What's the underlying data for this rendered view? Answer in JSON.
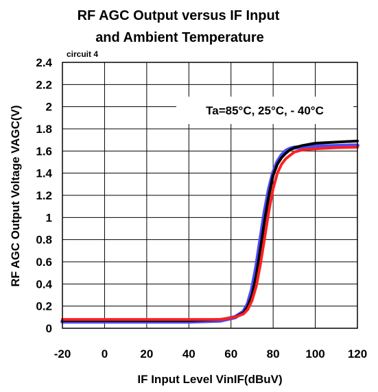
{
  "chart_data": {
    "type": "line",
    "title_line1": "RF AGC Output versus IF Input",
    "title_line2": "and Ambient Temperature",
    "subtitle": "circuit 4",
    "xlabel": "IF Input Level VinIF(dBuV)",
    "ylabel": "RF AGC Output Voltage VAGC(V)",
    "annotation": "Ta=85°C, 25°C, - 40°C",
    "xlim": [
      -20,
      120
    ],
    "ylim": [
      0,
      2.4
    ],
    "xticks": [
      -20,
      0,
      20,
      40,
      60,
      80,
      100,
      120
    ],
    "xtick_labels": [
      "-20",
      "0",
      "20",
      "40",
      "60",
      "80",
      "100",
      "120"
    ],
    "yticks": [
      0,
      0.2,
      0.4,
      0.6,
      0.8,
      1,
      1.2,
      1.4,
      1.6,
      1.8,
      2,
      2.2,
      2.4
    ],
    "ytick_labels": [
      "0",
      "0.2",
      "0.4",
      "0.6",
      "0.8",
      "1",
      "1.2",
      "1.4",
      "1.6",
      "1.8",
      "2",
      "2.2",
      "2.4"
    ],
    "grid": true,
    "series": [
      {
        "color": "#4b4bff",
        "x": [
          -20,
          0,
          20,
          40,
          55,
          62,
          66,
          68,
          70,
          72,
          74,
          76,
          78,
          80,
          82,
          84,
          86,
          88,
          90,
          94,
          100,
          110,
          120
        ],
        "y": [
          0.06,
          0.06,
          0.06,
          0.06,
          0.07,
          0.1,
          0.15,
          0.22,
          0.35,
          0.55,
          0.8,
          1.05,
          1.25,
          1.4,
          1.5,
          1.56,
          1.6,
          1.62,
          1.63,
          1.635,
          1.64,
          1.645,
          1.65
        ]
      },
      {
        "color": "#000000",
        "x": [
          -20,
          0,
          20,
          40,
          55,
          62,
          66,
          68,
          70,
          72,
          74,
          76,
          78,
          80,
          82,
          84,
          86,
          88,
          90,
          94,
          100,
          110,
          120
        ],
        "y": [
          0.07,
          0.07,
          0.07,
          0.07,
          0.08,
          0.1,
          0.14,
          0.2,
          0.3,
          0.48,
          0.72,
          0.98,
          1.2,
          1.38,
          1.48,
          1.54,
          1.58,
          1.61,
          1.63,
          1.65,
          1.67,
          1.68,
          1.69
        ]
      },
      {
        "color": "#ff2020",
        "x": [
          -20,
          0,
          20,
          40,
          55,
          62,
          66,
          68,
          70,
          72,
          74,
          76,
          78,
          80,
          82,
          84,
          86,
          88,
          90,
          94,
          100,
          110,
          120
        ],
        "y": [
          0.08,
          0.08,
          0.08,
          0.08,
          0.08,
          0.1,
          0.13,
          0.17,
          0.25,
          0.38,
          0.58,
          0.82,
          1.06,
          1.26,
          1.4,
          1.48,
          1.53,
          1.56,
          1.59,
          1.61,
          1.62,
          1.63,
          1.635
        ]
      }
    ]
  }
}
